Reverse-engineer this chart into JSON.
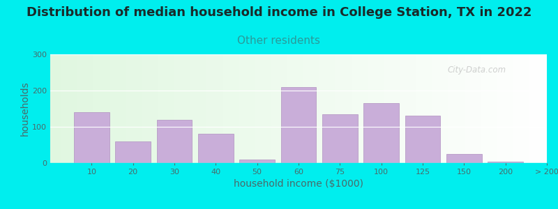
{
  "title": "Distribution of median household income in College Station, TX in 2022",
  "subtitle": "Other residents",
  "xlabel": "household income ($1000)",
  "ylabel": "households",
  "background_color": "#00EEEE",
  "bar_color": "#c9aed9",
  "bar_edge_color": "#b090c0",
  "bar_positions": [
    0,
    1,
    2,
    3,
    4,
    5,
    6,
    7,
    8,
    9,
    10,
    11
  ],
  "bar_heights": [
    140,
    60,
    120,
    80,
    10,
    210,
    135,
    165,
    130,
    25,
    3,
    0
  ],
  "xtick_labels": [
    "10",
    "20",
    "30",
    "40",
    "50",
    "60",
    "75",
    "100",
    "125",
    "150",
    "200",
    "> 200"
  ],
  "ylim": [
    0,
    300
  ],
  "yticks": [
    0,
    100,
    200,
    300
  ],
  "title_fontsize": 13,
  "subtitle_fontsize": 11,
  "axis_label_fontsize": 10,
  "subtitle_color": "#2a9a9a",
  "axis_text_color": "#4a6a6a",
  "watermark_text": "City-Data.com"
}
